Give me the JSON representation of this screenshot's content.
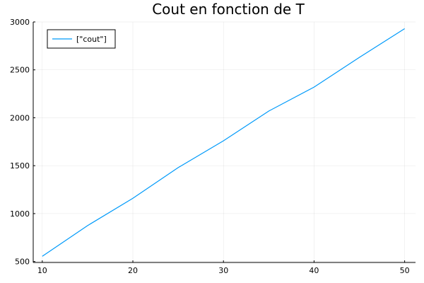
{
  "chart_data": {
    "type": "line",
    "title": "Cout en fonction de T",
    "xlabel": "",
    "ylabel": "",
    "xlim": [
      9.0,
      51.2
    ],
    "ylim": [
      490,
      3000
    ],
    "xticks": [
      10,
      20,
      30,
      40,
      50
    ],
    "yticks": [
      500,
      1000,
      1500,
      2000,
      2500,
      3000
    ],
    "grid": true,
    "legend_position": "top-left",
    "series": [
      {
        "name": "[\"cout\"]",
        "color": "#009AFA",
        "x": [
          10,
          15,
          20,
          25,
          30,
          35,
          40,
          45,
          50
        ],
        "y": [
          555,
          875,
          1160,
          1480,
          1760,
          2070,
          2320,
          2630,
          2930
        ]
      }
    ]
  }
}
